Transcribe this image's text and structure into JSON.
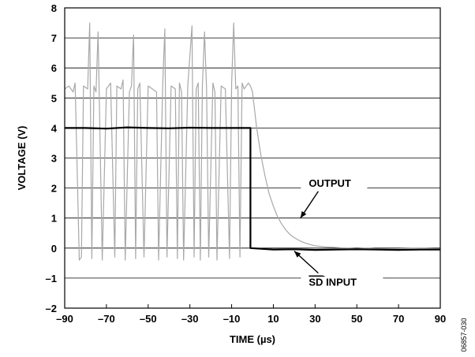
{
  "chart_data": {
    "type": "line",
    "xlabel": "TIME (µs)",
    "ylabel": "VOLTAGE (V)",
    "xlim": [
      -90,
      90
    ],
    "ylim": [
      -2,
      8
    ],
    "x_ticks": [
      -90,
      -70,
      -50,
      -30,
      -10,
      10,
      30,
      50,
      70,
      90
    ],
    "x_tick_labels": [
      "–90",
      "–70",
      "–50",
      "–30",
      "–10",
      "10",
      "30",
      "50",
      "70",
      "90"
    ],
    "y_ticks": [
      -2,
      -1,
      0,
      1,
      2,
      3,
      4,
      5,
      6,
      7,
      8
    ],
    "y_tick_labels": [
      "–2",
      "–1",
      "0",
      "1",
      "2",
      "3",
      "4",
      "5",
      "6",
      "7",
      "8"
    ],
    "grid": "horizontal",
    "series": [
      {
        "name": "OUTPUT",
        "color": "#a8a8a8",
        "x": [
          -90,
          -88,
          -86,
          -85,
          -83,
          -82,
          -81,
          -79,
          -78,
          -77,
          -76,
          -75,
          -74,
          -72,
          -70,
          -68,
          -66,
          -65,
          -63,
          -62,
          -61,
          -59,
          -58,
          -57,
          -56,
          -55,
          -54,
          -52,
          -50,
          -48,
          -46,
          -45,
          -43,
          -42,
          -41,
          -39,
          -37,
          -36,
          -35,
          -34,
          -33,
          -31,
          -29,
          -28,
          -27,
          -26,
          -25,
          -24,
          -23,
          -22,
          -21,
          -19,
          -18,
          -17,
          -15,
          -13,
          -11,
          -10,
          -9,
          -8,
          -7,
          -6,
          -5,
          -4,
          -3,
          -2,
          -1,
          -0.5,
          0,
          2,
          4,
          6,
          8,
          10,
          12,
          14,
          16,
          18,
          20,
          22,
          24,
          26,
          28,
          30,
          35,
          40,
          45,
          50,
          55,
          60,
          70,
          80,
          90
        ],
        "y": [
          5.3,
          5.4,
          5.2,
          5.5,
          -0.4,
          -0.3,
          5.4,
          5.3,
          7.5,
          -0.35,
          5.4,
          5.2,
          7.2,
          -0.4,
          5.3,
          5.5,
          -0.3,
          5.4,
          5.3,
          5.6,
          -0.4,
          5.2,
          5.4,
          7.1,
          -0.35,
          5.3,
          5.5,
          -0.3,
          5.4,
          5.3,
          5.2,
          -0.4,
          5.5,
          7.3,
          -0.3,
          5.4,
          5.3,
          -0.35,
          5.5,
          5.2,
          -0.4,
          5.4,
          7.4,
          -0.3,
          5.3,
          5.5,
          -0.4,
          5.4,
          7.2,
          5.3,
          -0.3,
          5.5,
          5.2,
          -0.4,
          5.4,
          5.3,
          -0.35,
          5.5,
          7.5,
          5.3,
          5.4,
          -0.3,
          5.5,
          5.3,
          5.4,
          5.5,
          5.4,
          5.3,
          5.2,
          4.0,
          3.1,
          2.4,
          1.8,
          1.4,
          1.05,
          0.8,
          0.6,
          0.45,
          0.35,
          0.27,
          0.2,
          0.15,
          0.11,
          0.08,
          0.04,
          0.02,
          0.0,
          -0.02,
          0.0,
          -0.03,
          -0.02,
          0.0,
          -0.03
        ]
      },
      {
        "name": "SD INPUT",
        "color": "#000000",
        "x": [
          -90,
          -80,
          -70,
          -60,
          -50,
          -40,
          -30,
          -20,
          -10,
          -1,
          -1,
          10,
          20,
          30,
          40,
          50,
          60,
          70,
          80,
          90
        ],
        "y": [
          4.0,
          4.0,
          3.98,
          4.02,
          4.0,
          3.99,
          4.01,
          4.0,
          4.0,
          4.0,
          0.0,
          -0.05,
          -0.04,
          -0.06,
          -0.05,
          -0.04,
          -0.05,
          -0.06,
          -0.05,
          -0.05
        ]
      }
    ],
    "annotations": [
      {
        "text": "OUTPUT",
        "target_x": 23,
        "target_y": 1.0,
        "label_x": 27,
        "label_y": 2.1
      },
      {
        "text": "SD INPUT",
        "overline": "SD",
        "rest": " INPUT",
        "target_x": 20,
        "target_y": -0.1,
        "label_x": 27,
        "label_y": -1.2
      }
    ],
    "figure_id": "06857-030"
  }
}
